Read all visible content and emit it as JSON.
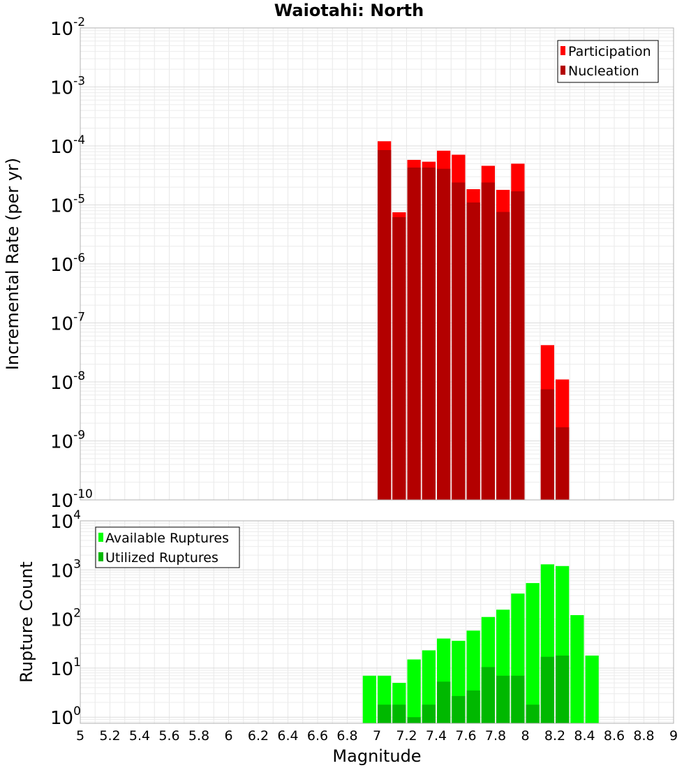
{
  "chart_data": [
    {
      "type": "bar",
      "title": "Waiotahi: North",
      "xlabel": "",
      "ylabel": "Incremental Rate (per yr)",
      "xlim": [
        5,
        9
      ],
      "ylim": [
        1e-10,
        0.01
      ],
      "yscale": "log",
      "y_ticks": [
        {
          "base": "10",
          "exp": "-10",
          "value": 1e-10
        },
        {
          "base": "10",
          "exp": "-9",
          "value": 1e-09
        },
        {
          "base": "10",
          "exp": "-8",
          "value": 1e-08
        },
        {
          "base": "10",
          "exp": "-7",
          "value": 1e-07
        },
        {
          "base": "10",
          "exp": "-6",
          "value": 1e-06
        },
        {
          "base": "10",
          "exp": "-5",
          "value": 1e-05
        },
        {
          "base": "10",
          "exp": "-4",
          "value": 0.0001
        },
        {
          "base": "10",
          "exp": "-3",
          "value": 0.001
        },
        {
          "base": "10",
          "exp": "-2",
          "value": 0.01
        }
      ],
      "grid": true,
      "legend_position": "top-right",
      "bar_width": 0.1,
      "series": [
        {
          "name": "Participation",
          "color": "#ff0000",
          "x": [
            7.05,
            7.15,
            7.25,
            7.35,
            7.45,
            7.55,
            7.65,
            7.75,
            7.85,
            7.95,
            8.15,
            8.25
          ],
          "values": [
            0.00012,
            7.5e-06,
            5.8e-05,
            5.4e-05,
            8.3e-05,
            7.1e-05,
            1.85e-05,
            4.6e-05,
            1.8e-05,
            5e-05,
            4.2e-08,
            1.1e-08
          ]
        },
        {
          "name": "Nucleation",
          "color": "#b30000",
          "x": [
            7.05,
            7.15,
            7.25,
            7.35,
            7.45,
            7.55,
            7.65,
            7.75,
            7.85,
            7.95,
            8.15,
            8.25
          ],
          "values": [
            8.5e-05,
            6.2e-06,
            4.3e-05,
            4.3e-05,
            4.1e-05,
            2.4e-05,
            1.1e-05,
            2.4e-05,
            7.6e-06,
            1.7e-05,
            7.5e-09,
            1.7e-09
          ]
        }
      ]
    },
    {
      "type": "bar",
      "title": "",
      "xlabel": "Magnitude",
      "ylabel": "Rupture Count",
      "xlim": [
        5,
        9
      ],
      "ylim": [
        0.75,
        10000
      ],
      "yscale": "log",
      "x_ticks": [
        "5",
        "5.2",
        "5.4",
        "5.6",
        "5.8",
        "6",
        "6.2",
        "6.4",
        "6.6",
        "6.8",
        "7",
        "7.2",
        "7.4",
        "7.6",
        "7.8",
        "8",
        "8.2",
        "8.4",
        "8.6",
        "8.8",
        "9"
      ],
      "y_ticks": [
        {
          "base": "10",
          "exp": "0",
          "value": 1
        },
        {
          "base": "10",
          "exp": "1",
          "value": 10
        },
        {
          "base": "10",
          "exp": "2",
          "value": 100
        },
        {
          "base": "10",
          "exp": "3",
          "value": 1000
        },
        {
          "base": "10",
          "exp": "4",
          "value": 10000
        }
      ],
      "grid": true,
      "legend_position": "top-left",
      "bar_width": 0.1,
      "series": [
        {
          "name": "Available Ruptures",
          "color": "#00ff00",
          "x": [
            6.95,
            7.05,
            7.15,
            7.25,
            7.35,
            7.45,
            7.55,
            7.65,
            7.75,
            7.85,
            7.95,
            8.05,
            8.15,
            8.25,
            8.35,
            8.45
          ],
          "values": [
            7,
            7,
            5,
            15,
            23,
            40,
            36,
            58,
            110,
            155,
            330,
            540,
            1300,
            1200,
            120,
            18
          ]
        },
        {
          "name": "Utilized Ruptures",
          "color": "#00b800",
          "x": [
            7.05,
            7.15,
            7.25,
            7.35,
            7.45,
            7.55,
            7.65,
            7.75,
            7.85,
            7.95,
            8.05,
            8.15,
            8.25
          ],
          "values": [
            1.8,
            1.8,
            1,
            1.8,
            5.3,
            2.7,
            3.5,
            10.5,
            7,
            7,
            1.8,
            17,
            18
          ]
        }
      ]
    }
  ]
}
